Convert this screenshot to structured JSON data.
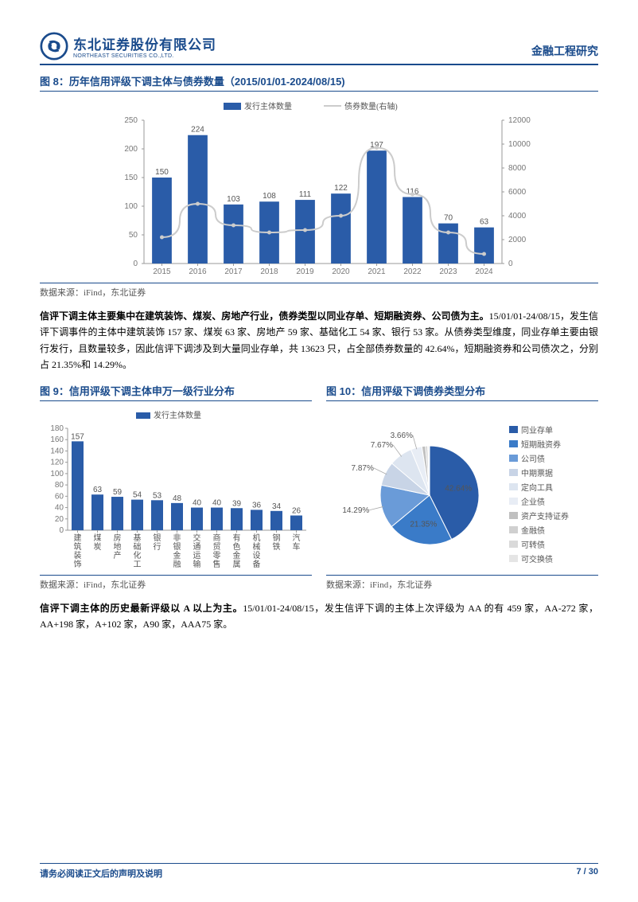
{
  "header": {
    "company_cn": "东北证券股份有限公司",
    "company_en": "NORTHEAST SECURITIES CO.,LTD.",
    "right_label": "金融工程研究",
    "logo_color": "#1a4b8c"
  },
  "fig8": {
    "title": "图 8：历年信用评级下调主体与债券数量（2015/01/01-2024/08/15)",
    "legend": {
      "bar_label": "发行主体数量",
      "line_label": "债券数量(右轴)"
    },
    "categories": [
      "2015",
      "2016",
      "2017",
      "2018",
      "2019",
      "2020",
      "2021",
      "2022",
      "2023",
      "2024"
    ],
    "bar_values": [
      150,
      224,
      103,
      108,
      111,
      122,
      197,
      116,
      70,
      63
    ],
    "line_values": [
      2200,
      5000,
      3200,
      2600,
      2800,
      4000,
      9700,
      5800,
      2600,
      800
    ],
    "bar_color": "#2a5ca8",
    "line_color": "#cccccc",
    "y1_max": 250,
    "y1_step": 50,
    "y2_max": 12000,
    "y2_step": 2000,
    "data_source": "数据来源：iFind，东北证券"
  },
  "para1": {
    "bold": "信评下调主体主要集中在建筑装饰、煤炭、房地产行业，债券类型以同业存单、短期融资券、公司债为主。",
    "rest": "15/01/01-24/08/15，发生信评下调事件的主体中建筑装饰 157 家、煤炭 63 家、房地产 59 家、基础化工 54 家、银行 53 家。从债券类型维度，同业存单主要由银行发行，且数量较多，因此信评下调涉及到大量同业存单，共 13623 只，占全部债券数量的 42.64%，短期融资券和公司债次之，分别占 21.35%和 14.29%。"
  },
  "fig9": {
    "title": "图 9：信用评级下调主体申万一级行业分布",
    "legend_label": "发行主体数量",
    "categories": [
      "建筑装饰",
      "煤炭",
      "房地产",
      "基础化工",
      "银行",
      "非银金融",
      "交通运输",
      "商贸零售",
      "有色金属",
      "机械设备",
      "钢铁",
      "汽车"
    ],
    "values": [
      157,
      63,
      59,
      54,
      53,
      48,
      40,
      40,
      39,
      36,
      34,
      26
    ],
    "bar_color": "#2a5ca8",
    "y_max": 180,
    "y_step": 20,
    "data_source": "数据来源：iFind，东北证券"
  },
  "fig10": {
    "title": "图 10：信用评级下调债券类型分布",
    "slices": [
      {
        "label": "同业存单",
        "pct": 42.64,
        "color": "#2a5ca8",
        "label_shown": "42.64%"
      },
      {
        "label": "短期融资券",
        "pct": 21.35,
        "color": "#3a7bc8",
        "label_shown": "21.35%"
      },
      {
        "label": "公司债",
        "pct": 14.29,
        "color": "#6a9bd8",
        "label_shown": "14.29%"
      },
      {
        "label": "中期票据",
        "pct": 7.87,
        "color": "#c8d4e6",
        "label_shown": "7.87%"
      },
      {
        "label": "定向工具",
        "pct": 7.67,
        "color": "#dde5f0",
        "label_shown": "7.67%"
      },
      {
        "label": "企业债",
        "pct": 3.66,
        "color": "#e8edf5",
        "label_shown": "3.66%"
      },
      {
        "label": "资产支持证券",
        "pct": 1.2,
        "color": "#c0c0c0",
        "label_shown": ""
      },
      {
        "label": "金融债",
        "pct": 0.7,
        "color": "#d0d0d0",
        "label_shown": ""
      },
      {
        "label": "可转债",
        "pct": 0.4,
        "color": "#dadada",
        "label_shown": ""
      },
      {
        "label": "可交换债",
        "pct": 0.22,
        "color": "#e5e5e5",
        "label_shown": ""
      }
    ],
    "data_source": "数据来源：iFind，东北证券"
  },
  "para2": {
    "bold": "信评下调主体的历史最新评级以 A 以上为主。",
    "rest": "15/01/01-24/08/15，发生信评下调的主体上次评级为 AA 的有 459 家，AA-272 家，AA+198 家，A+102 家，A90 家，AAA75 家。"
  },
  "footer": {
    "left": "请务必阅读正文后的声明及说明",
    "right": "7 / 30"
  }
}
